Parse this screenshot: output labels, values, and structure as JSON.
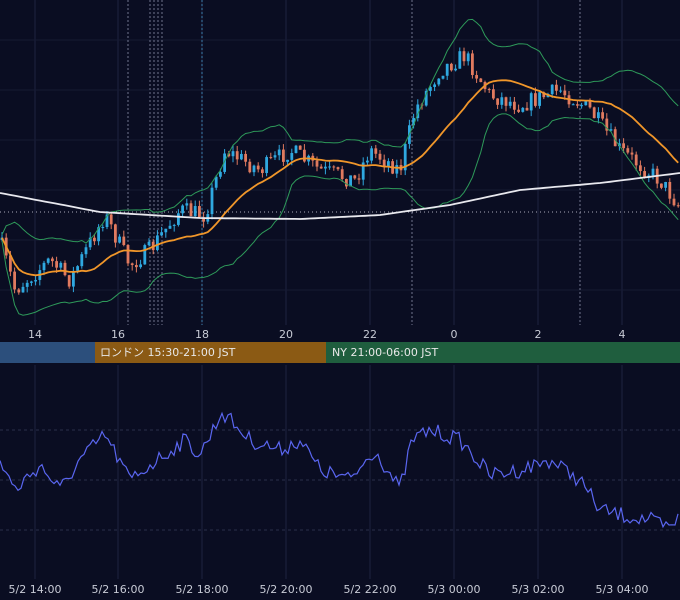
{
  "top_axis": {
    "labels": [
      "14",
      "16",
      "18",
      "20",
      "22",
      "0",
      "2",
      "4"
    ]
  },
  "sessions": [
    {
      "label": "ロンドン 15:30-21:00 JST"
    },
    {
      "label": "NY 21:00-06:00 JST"
    }
  ],
  "bottom_axis": {
    "labels": [
      "5/2 14:00",
      "5/2 16:00",
      "5/2 18:00",
      "5/2 20:00",
      "5/2 22:00",
      "5/3 00:00",
      "5/3 02:00",
      "5/3 04:00"
    ]
  }
}
